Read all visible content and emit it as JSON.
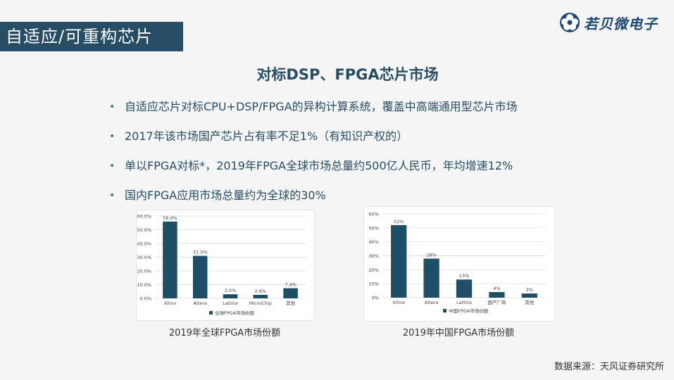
{
  "slide": {
    "title": "自适应/可重构芯片",
    "logo_text": "若贝微电子",
    "heading": "对标DSP、FPGA芯片市场",
    "bullets": [
      "自适应芯片对标CPU+DSP/FPGA的异构计算系统，覆盖中高端通用型芯片市场",
      "2017年该市场国产芯片占有率不足1%（有知识产权的）",
      "单以FPGA对标*，2019年FPGA全球市场总量约500亿人民币，年均增速12%",
      "国内FPGA应用市场总量约为全球的30%"
    ],
    "bullet_glyph": "•",
    "source": "数据来源：天风证券研究所"
  },
  "chart_data": [
    {
      "type": "bar",
      "caption": "2019年全球FPGA市场份额",
      "categories": [
        "Xilinx",
        "Altera",
        "Lattice",
        "MicroChip",
        "其他"
      ],
      "series": [
        {
          "name": "全球FPGA市场份额",
          "values": [
            56.0,
            31.0,
            3.0,
            2.6,
            7.4
          ]
        }
      ],
      "data_labels": [
        "56.0%",
        "31.0%",
        "3.0%",
        "2.6%",
        "7.4%"
      ],
      "ylim": [
        0,
        60
      ],
      "yticks": [
        "0.0%",
        "10.0%",
        "20.0%",
        "30.0%",
        "40.0%",
        "50.0%",
        "60.0%"
      ],
      "grid": true,
      "legend": "bottom",
      "bar_color": "#1f4f66"
    },
    {
      "type": "bar",
      "caption": "2019年中国FPGA市场份额",
      "categories": [
        "Xilinx",
        "Altera",
        "Lattice",
        "国产厂商",
        "其他"
      ],
      "series": [
        {
          "name": "中国FPGA市场份额",
          "values": [
            52,
            28,
            13,
            4,
            3
          ]
        }
      ],
      "data_labels": [
        "52%",
        "28%",
        "13%",
        "4%",
        "3%"
      ],
      "ylim": [
        0,
        60
      ],
      "yticks": [
        "0%",
        "10%",
        "20%",
        "30%",
        "40%",
        "50%",
        "60%"
      ],
      "grid": true,
      "legend": "bottom",
      "bar_color": "#1f4f66"
    }
  ]
}
